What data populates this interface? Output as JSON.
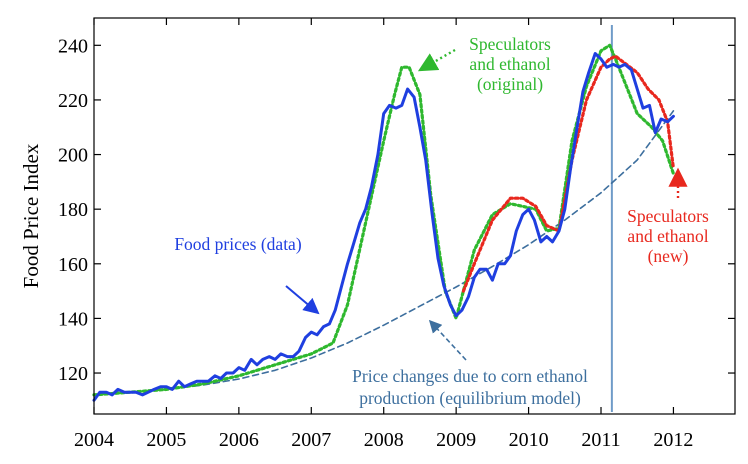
{
  "chart_data": {
    "type": "line",
    "ylabel": "Food Price Index",
    "xlim": [
      2004,
      2012.85
    ],
    "ylim": [
      105,
      250
    ],
    "x_ticks": [
      2004,
      2005,
      2006,
      2007,
      2008,
      2009,
      2010,
      2011,
      2012
    ],
    "y_ticks": [
      120,
      140,
      160,
      180,
      200,
      220,
      240
    ],
    "vertical_marker_x": 2011.15,
    "colors": {
      "data": "#1f3fe0",
      "original": "#2fb82f",
      "new": "#e8281e",
      "equilibrium": "#3d6f9e",
      "marker": "#6f9bc8"
    },
    "series": [
      {
        "name": "Food prices (data)",
        "style": "solid",
        "x": [
          2004.0,
          2004.08,
          2004.17,
          2004.25,
          2004.33,
          2004.42,
          2004.5,
          2004.58,
          2004.67,
          2004.75,
          2004.83,
          2004.92,
          2005.0,
          2005.08,
          2005.17,
          2005.25,
          2005.33,
          2005.42,
          2005.5,
          2005.58,
          2005.67,
          2005.75,
          2005.83,
          2005.92,
          2006.0,
          2006.08,
          2006.17,
          2006.25,
          2006.33,
          2006.42,
          2006.5,
          2006.58,
          2006.67,
          2006.75,
          2006.83,
          2006.92,
          2007.0,
          2007.08,
          2007.17,
          2007.25,
          2007.33,
          2007.42,
          2007.5,
          2007.58,
          2007.67,
          2007.75,
          2007.83,
          2007.92,
          2008.0,
          2008.08,
          2008.17,
          2008.25,
          2008.33,
          2008.42,
          2008.5,
          2008.58,
          2008.67,
          2008.75,
          2008.83,
          2008.92,
          2009.0,
          2009.08,
          2009.17,
          2009.25,
          2009.33,
          2009.42,
          2009.5,
          2009.58,
          2009.67,
          2009.75,
          2009.83,
          2009.92,
          2010.0,
          2010.08,
          2010.17,
          2010.25,
          2010.33,
          2010.42,
          2010.5,
          2010.58,
          2010.67,
          2010.75,
          2010.83,
          2010.92,
          2011.0,
          2011.08,
          2011.17,
          2011.25,
          2011.33,
          2011.42,
          2011.5,
          2011.58,
          2011.67,
          2011.75,
          2011.83,
          2011.92,
          2012.0
        ],
        "y": [
          110,
          113,
          113,
          112,
          114,
          113,
          113,
          113,
          112,
          113,
          114,
          115,
          115,
          114,
          117,
          115,
          116,
          117,
          117,
          117,
          119,
          118,
          120,
          120,
          122,
          121,
          125,
          123,
          125,
          126,
          125,
          127,
          126,
          126,
          128,
          133,
          135,
          134,
          137,
          138,
          143,
          152,
          160,
          167,
          175,
          180,
          188,
          200,
          215,
          218,
          217,
          218,
          224,
          221,
          210,
          198,
          178,
          162,
          152,
          145,
          141,
          143,
          148,
          155,
          158,
          158,
          154,
          160,
          160,
          163,
          172,
          178,
          180,
          176,
          168,
          170,
          168,
          172,
          180,
          195,
          210,
          223,
          230,
          237,
          235,
          232,
          233,
          232,
          233,
          231,
          224,
          217,
          218,
          208,
          213,
          212,
          214
        ]
      },
      {
        "name": "Speculators and ethanol (original)",
        "style": "dotted",
        "x": [
          2004.0,
          2004.5,
          2005.0,
          2005.5,
          2006.0,
          2006.5,
          2007.0,
          2007.3,
          2007.5,
          2007.75,
          2008.0,
          2008.15,
          2008.25,
          2008.35,
          2008.5,
          2008.65,
          2008.85,
          2009.0,
          2009.08,
          2009.25,
          2009.5,
          2009.75,
          2009.92,
          2010.1,
          2010.25,
          2010.42,
          2010.6,
          2010.8,
          2011.0,
          2011.12,
          2011.2,
          2011.35,
          2011.5,
          2011.7,
          2011.85,
          2012.0
        ],
        "y": [
          112,
          113,
          114,
          116,
          119,
          123,
          127,
          131,
          145,
          175,
          205,
          222,
          232,
          232,
          222,
          185,
          150,
          140,
          148,
          165,
          178,
          182,
          181,
          180,
          172,
          173,
          205,
          225,
          238,
          240,
          235,
          225,
          215,
          210,
          205,
          193
        ]
      },
      {
        "name": "Speculators and ethanol (new)",
        "style": "dotted",
        "x": [
          2009.1,
          2009.25,
          2009.5,
          2009.75,
          2009.92,
          2010.1,
          2010.25,
          2010.42,
          2010.6,
          2010.8,
          2011.0,
          2011.12,
          2011.2,
          2011.35,
          2011.5,
          2011.65,
          2011.8,
          2011.92,
          2012.0
        ],
        "y": [
          150,
          160,
          176,
          184,
          184,
          181,
          174,
          172,
          198,
          220,
          232,
          235,
          236,
          233,
          230,
          224,
          220,
          212,
          195
        ]
      },
      {
        "name": "Price changes due to corn ethanol production (equilibrium model)",
        "style": "dashed",
        "x": [
          2004.0,
          2004.5,
          2005.0,
          2005.5,
          2006.0,
          2006.5,
          2007.0,
          2007.5,
          2008.0,
          2008.5,
          2009.0,
          2009.5,
          2010.0,
          2010.5,
          2011.0,
          2011.5,
          2012.0
        ],
        "y": [
          112,
          112.8,
          114,
          115.6,
          117.8,
          121,
          125.5,
          131,
          137.5,
          144.5,
          151.5,
          159,
          167,
          176,
          186,
          198,
          216
        ]
      }
    ],
    "annotations": [
      {
        "key": "data",
        "lines": [
          "Food prices (data)"
        ]
      },
      {
        "key": "original",
        "lines": [
          "Speculators",
          "and ethanol",
          "(original)"
        ]
      },
      {
        "key": "new",
        "lines": [
          "Speculators",
          "and ethanol",
          "(new)"
        ]
      },
      {
        "key": "equilibrium",
        "lines": [
          "Price changes due to corn ethanol",
          "production (equilibrium model)"
        ]
      }
    ]
  }
}
